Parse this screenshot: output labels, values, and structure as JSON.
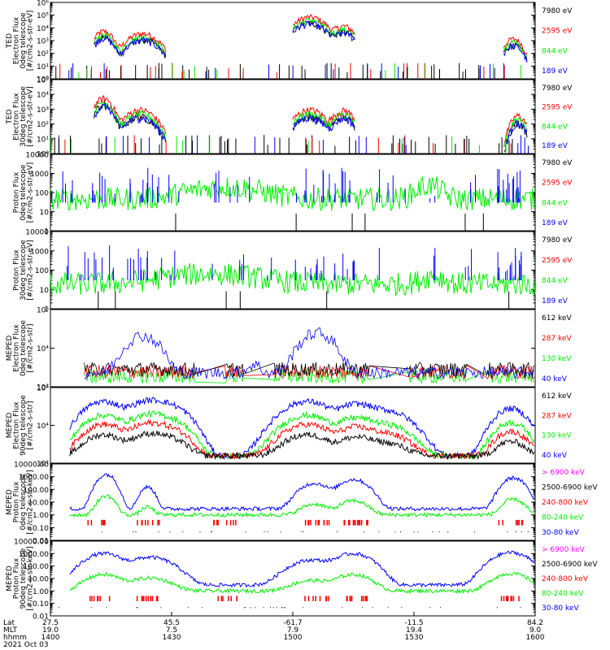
{
  "colors": {
    "blue": "#0000ff",
    "green": "#00ee00",
    "red": "#ff0000",
    "black": "#000000",
    "magenta": "#ff00ff"
  },
  "chart_data": [
    {
      "type": "line",
      "ylabel_lines": [
        "TED",
        "Electron Flux",
        "0deg telescope",
        "[#/cm2-s-str-eV]"
      ],
      "y_scale": "log",
      "ylim": [
        1,
        1000000
      ],
      "y_ticks": [
        "10⁰",
        "10¹",
        "10²",
        "10³",
        "10⁴",
        "10⁵",
        "10⁶"
      ],
      "legend": [
        {
          "label": "7980 eV",
          "color": "#000000"
        },
        {
          "label": "2595 eV",
          "color": "#ff0000"
        },
        {
          "label": "844 eV",
          "color": "#00ee00"
        },
        {
          "label": "189 eV",
          "color": "#0000ff"
        }
      ],
      "bursts": [
        {
          "t": 0.25,
          "peak": 30000,
          "width": 0.015,
          "series": "red"
        },
        {
          "t": 0.33,
          "peak": 5000,
          "width": 0.025,
          "series": "red"
        },
        {
          "t": 0.725,
          "peak": 200000,
          "width": 0.02,
          "series": "red"
        },
        {
          "t": 0.8,
          "peak": 50000,
          "width": 0.012,
          "series": "red"
        },
        {
          "t": 0.955,
          "peak": 5000,
          "width": 0.01,
          "series": "red"
        }
      ]
    },
    {
      "type": "line",
      "ylabel_lines": [
        "TED",
        "Electron Flux",
        "30deg telescope",
        "[#/cm2-s-str-eV]"
      ],
      "y_scale": "log",
      "ylim": [
        1,
        100000
      ],
      "y_ticks": [
        "10⁰",
        "10¹",
        "10²",
        "10³",
        "10⁴",
        "10⁵"
      ],
      "legend": [
        {
          "label": "7980 eV",
          "color": "#000000"
        },
        {
          "label": "2595 eV",
          "color": "#ff0000"
        },
        {
          "label": "844 eV",
          "color": "#00ee00"
        },
        {
          "label": "189 eV",
          "color": "#0000ff"
        }
      ],
      "bursts": [
        {
          "t": 0.25,
          "peak": 20000,
          "width": 0.015,
          "series": "red"
        },
        {
          "t": 0.33,
          "peak": 2000,
          "width": 0.025,
          "series": "red"
        },
        {
          "t": 0.72,
          "peak": 3000,
          "width": 0.02,
          "series": "red"
        },
        {
          "t": 0.8,
          "peak": 3000,
          "width": 0.012,
          "series": "red"
        }
      ]
    },
    {
      "type": "line",
      "ylabel_lines": [
        "Proton Flux",
        "0deg telescope",
        "[#/cm2-s-str-eV]"
      ],
      "y_scale": "log",
      "ylim": [
        1,
        10000
      ],
      "y_ticks": [
        "1",
        "10",
        "100",
        "1000",
        "10000"
      ],
      "legend": [
        {
          "label": "7980 eV",
          "color": "#000000"
        },
        {
          "label": "2595 eV",
          "color": "#ff0000"
        },
        {
          "label": "844 eV",
          "color": "#00ee00"
        },
        {
          "label": "189 eV",
          "color": "#0000ff"
        }
      ]
    },
    {
      "type": "line",
      "ylabel_lines": [
        "Proton Flux",
        "30deg telescope",
        "[#/cm2-s-str-eV]"
      ],
      "y_scale": "log",
      "ylim": [
        1,
        10000
      ],
      "y_ticks": [
        "1",
        "10",
        "100",
        "1000",
        "10000"
      ],
      "legend": [
        {
          "label": "7980 eV",
          "color": "#000000"
        },
        {
          "label": "2595 eV",
          "color": "#ff0000"
        },
        {
          "label": "844 eV",
          "color": "#00ee00"
        },
        {
          "label": "189 eV",
          "color": "#0000ff"
        }
      ]
    },
    {
      "type": "line",
      "ylabel_lines": [
        "MEPED",
        "Electron Flux",
        "0deg telescope",
        "[#/cm2-s-str]"
      ],
      "y_scale": "log",
      "ylim": [
        10,
        1000000
      ],
      "y_ticks": [
        "10²",
        "10⁴",
        "10⁶"
      ],
      "legend": [
        {
          "label": "612 keV",
          "color": "#000000"
        },
        {
          "label": "287 keV",
          "color": "#ff0000"
        },
        {
          "label": "130 keV",
          "color": "#00ee00"
        },
        {
          "label": "40 keV",
          "color": "#0000ff"
        }
      ]
    },
    {
      "type": "line",
      "ylabel_lines": [
        "MEPED",
        "Electron Flux",
        "90deg telescope",
        "[#/cm2-s-str]"
      ],
      "y_scale": "log",
      "ylim": [
        10,
        1000000
      ],
      "y_ticks": [
        "10²",
        "10⁴",
        "10⁶"
      ],
      "legend": [
        {
          "label": "612 keV",
          "color": "#000000"
        },
        {
          "label": "287 keV",
          "color": "#ff0000"
        },
        {
          "label": "130 keV",
          "color": "#00ee00"
        },
        {
          "label": "40 keV",
          "color": "#0000ff"
        }
      ]
    },
    {
      "type": "line",
      "ylabel_lines": [
        "MEPED",
        "Proton Flux",
        "0deg telescope",
        "[#/cm2-s-str-keV]"
      ],
      "y_scale": "log",
      "ylim": [
        0.01,
        10000
      ],
      "y_ticks": [
        "0.01",
        "0.10",
        "1.00",
        "10.00",
        "100.00",
        "1000.00",
        "10000.00"
      ],
      "legend": [
        {
          "label": "> 6900 keV",
          "color": "#ff00ff"
        },
        {
          "label": "2500-6900 keV",
          "color": "#000000"
        },
        {
          "label": "240-800 keV",
          "color": "#ff0000"
        },
        {
          "label": "80-240 keV",
          "color": "#00ee00"
        },
        {
          "label": "30-80 keV",
          "color": "#0000ff"
        }
      ]
    },
    {
      "type": "line",
      "ylabel_lines": [
        "MEPED",
        "Proton Flux",
        "90deg telescope",
        "[#/cm2-s-str-keV]"
      ],
      "y_scale": "log",
      "ylim": [
        0.01,
        10000
      ],
      "y_ticks": [
        "0.01",
        "0.10",
        "1.00",
        "10.00",
        "100.00",
        "1000.00",
        "10000.00"
      ],
      "legend": [
        {
          "label": "> 6900 keV",
          "color": "#ff00ff"
        },
        {
          "label": "2500-6900 keV",
          "color": "#000000"
        },
        {
          "label": "240-800 keV",
          "color": "#ff0000"
        },
        {
          "label": "80-240 keV",
          "color": "#00ee00"
        },
        {
          "label": "30-80 keV",
          "color": "#0000ff"
        }
      ]
    }
  ],
  "x_axis": {
    "row_labels": [
      "Lat",
      "MLT",
      "hhmm"
    ],
    "ticks": [
      {
        "lat": "27.5",
        "mlt": "19.0",
        "hhmm": "1400"
      },
      {
        "lat": "45.5",
        "mlt": "7.5",
        "hhmm": "1430"
      },
      {
        "lat": "-61.7",
        "mlt": "7.9",
        "hhmm": "1500"
      },
      {
        "lat": "-11.5",
        "mlt": "19.4",
        "hhmm": "1530"
      },
      {
        "lat": "84.2",
        "mlt": "9.0",
        "hhmm": "1600"
      }
    ],
    "date": "2021 Oct 03"
  }
}
